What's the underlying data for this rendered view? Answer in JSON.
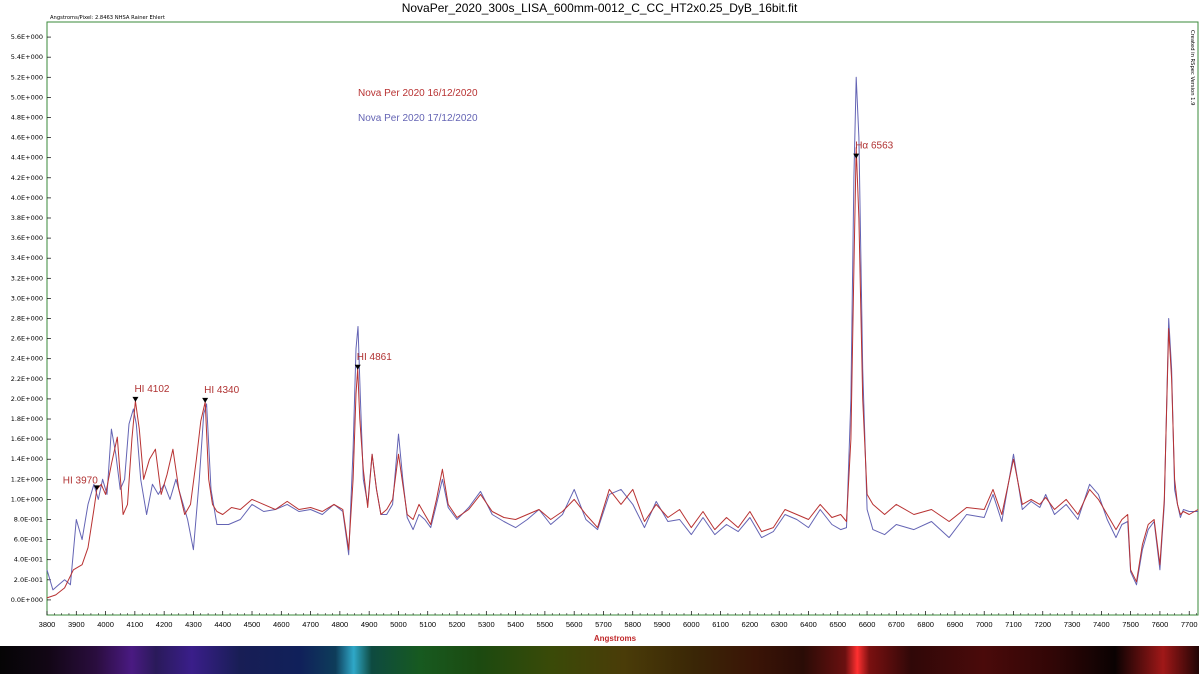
{
  "chart_data": {
    "type": "line",
    "title": "NovaPer_2020_300s_LISA_600mm-0012_C_CC_HT2x0.25_DyB_16bit.fit",
    "subtitle": "Angstroms/Pixel: 2.8463 NHSA Rainer Ehlert",
    "right_note": "Created in RSpec Version 1.9",
    "xlabel": "Angstroms",
    "ylabel": "",
    "xlim": [
      3800,
      7730
    ],
    "ylim": [
      -0.15,
      5.75
    ],
    "grid": false,
    "legend_placement": "top-left",
    "x_ticks": [
      3800,
      3900,
      4000,
      4100,
      4200,
      4300,
      4400,
      4500,
      4600,
      4700,
      4800,
      4900,
      5000,
      5100,
      5200,
      5300,
      5400,
      5500,
      5600,
      5700,
      5800,
      5900,
      6000,
      6100,
      6200,
      6300,
      6400,
      6500,
      6600,
      6700,
      6800,
      6900,
      7000,
      7100,
      7200,
      7300,
      7400,
      7500,
      7600,
      7700
    ],
    "y_ticks": [
      0.0,
      0.2,
      0.4,
      0.6,
      0.8,
      1.0,
      1.2,
      1.4,
      1.6,
      1.8,
      2.0,
      2.2,
      2.4,
      2.6,
      2.8,
      3.0,
      3.2,
      3.4,
      3.6,
      3.8,
      4.0,
      4.2,
      4.4,
      4.6,
      4.8,
      5.0,
      5.2,
      5.4,
      5.6
    ],
    "y_tick_labels": [
      "0.0E+000",
      "2.0E-001",
      "4.0E-001",
      "6.0E-001",
      "8.0E-001",
      "1.0E+000",
      "1.2E+000",
      "1.4E+000",
      "1.6E+000",
      "1.8E+000",
      "2.0E+000",
      "2.2E+000",
      "2.4E+000",
      "2.6E+000",
      "2.8E+000",
      "3.0E+000",
      "3.2E+000",
      "3.4E+000",
      "3.6E+000",
      "3.8E+000",
      "4.0E+000",
      "4.2E+000",
      "4.4E+000",
      "4.6E+000",
      "4.8E+000",
      "5.0E+000",
      "5.2E+000",
      "5.4E+000",
      "5.6E+000"
    ],
    "series": [
      {
        "name": "Nova Per 2020 16/12/2020",
        "color": "#b83232",
        "x": [
          3800,
          3830,
          3860,
          3890,
          3920,
          3940,
          3960,
          3970,
          3985,
          4000,
          4020,
          4040,
          4060,
          4075,
          4090,
          4102,
          4115,
          4130,
          4150,
          4170,
          4190,
          4210,
          4230,
          4250,
          4270,
          4290,
          4310,
          4325,
          4340,
          4352,
          4365,
          4380,
          4400,
          4430,
          4460,
          4500,
          4540,
          4580,
          4620,
          4660,
          4700,
          4740,
          4780,
          4810,
          4830,
          4845,
          4855,
          4861,
          4868,
          4880,
          4895,
          4910,
          4925,
          4940,
          4960,
          4980,
          5000,
          5015,
          5030,
          5050,
          5070,
          5090,
          5110,
          5130,
          5150,
          5170,
          5200,
          5240,
          5280,
          5320,
          5360,
          5400,
          5440,
          5480,
          5520,
          5560,
          5600,
          5640,
          5680,
          5720,
          5760,
          5800,
          5840,
          5880,
          5920,
          5960,
          6000,
          6040,
          6080,
          6120,
          6160,
          6200,
          6240,
          6280,
          6320,
          6360,
          6400,
          6440,
          6480,
          6510,
          6530,
          6545,
          6555,
          6563,
          6572,
          6585,
          6600,
          6620,
          6660,
          6700,
          6760,
          6820,
          6880,
          6940,
          7000,
          7030,
          7060,
          7100,
          7130,
          7160,
          7190,
          7210,
          7240,
          7280,
          7320,
          7360,
          7390,
          7420,
          7450,
          7470,
          7490,
          7500,
          7520,
          7540,
          7560,
          7580,
          7600,
          7615,
          7630,
          7640,
          7650,
          7660,
          7670,
          7680,
          7700,
          7730
        ],
        "y": [
          0.02,
          0.05,
          0.12,
          0.3,
          0.35,
          0.52,
          0.9,
          1.1,
          1.15,
          1.05,
          1.35,
          1.62,
          0.85,
          0.95,
          1.6,
          1.98,
          1.7,
          1.2,
          1.4,
          1.5,
          1.05,
          1.25,
          1.5,
          1.1,
          0.85,
          0.95,
          1.4,
          1.78,
          1.97,
          1.2,
          0.95,
          0.88,
          0.85,
          0.92,
          0.9,
          1.0,
          0.95,
          0.9,
          0.98,
          0.9,
          0.92,
          0.88,
          0.95,
          0.9,
          0.5,
          1.2,
          2.05,
          2.3,
          1.8,
          1.3,
          0.92,
          1.45,
          1.1,
          0.85,
          0.9,
          1.0,
          1.45,
          1.15,
          0.85,
          0.8,
          0.95,
          0.85,
          0.75,
          1.0,
          1.3,
          0.95,
          0.82,
          0.9,
          1.05,
          0.88,
          0.82,
          0.8,
          0.85,
          0.9,
          0.8,
          0.88,
          1.0,
          0.85,
          0.72,
          1.1,
          0.95,
          1.1,
          0.78,
          0.95,
          0.82,
          0.9,
          0.72,
          0.88,
          0.7,
          0.82,
          0.72,
          0.88,
          0.68,
          0.72,
          0.9,
          0.85,
          0.8,
          0.95,
          0.82,
          0.85,
          0.78,
          1.6,
          3.3,
          4.5,
          3.8,
          2.0,
          1.05,
          0.95,
          0.85,
          0.95,
          0.85,
          0.9,
          0.78,
          0.92,
          0.9,
          1.1,
          0.85,
          1.4,
          0.95,
          1.0,
          0.95,
          1.02,
          0.9,
          1.0,
          0.85,
          1.1,
          1.0,
          0.85,
          0.7,
          0.8,
          0.85,
          0.3,
          0.18,
          0.55,
          0.75,
          0.8,
          0.35,
          1.0,
          2.7,
          2.2,
          1.2,
          0.95,
          0.85,
          0.88,
          0.85,
          0.9
        ]
      },
      {
        "name": "Nova Per 2020 17/12/2020",
        "color": "#6464b4",
        "x": [
          3800,
          3820,
          3840,
          3860,
          3880,
          3900,
          3920,
          3940,
          3960,
          3975,
          3990,
          4005,
          4020,
          4035,
          4050,
          4065,
          4080,
          4095,
          4105,
          4120,
          4140,
          4160,
          4180,
          4200,
          4220,
          4240,
          4260,
          4280,
          4300,
          4320,
          4335,
          4345,
          4360,
          4380,
          4420,
          4460,
          4500,
          4540,
          4580,
          4620,
          4660,
          4700,
          4740,
          4780,
          4810,
          4830,
          4845,
          4855,
          4862,
          4870,
          4880,
          4895,
          4910,
          4925,
          4940,
          4960,
          4980,
          5000,
          5015,
          5030,
          5050,
          5070,
          5090,
          5110,
          5130,
          5150,
          5170,
          5200,
          5240,
          5280,
          5320,
          5360,
          5400,
          5440,
          5480,
          5520,
          5560,
          5600,
          5640,
          5680,
          5720,
          5760,
          5800,
          5840,
          5880,
          5920,
          5960,
          6000,
          6040,
          6080,
          6120,
          6160,
          6200,
          6240,
          6280,
          6320,
          6360,
          6400,
          6440,
          6480,
          6510,
          6530,
          6545,
          6555,
          6563,
          6572,
          6585,
          6600,
          6620,
          6660,
          6700,
          6760,
          6820,
          6880,
          6940,
          7000,
          7030,
          7060,
          7100,
          7130,
          7160,
          7190,
          7210,
          7240,
          7280,
          7320,
          7360,
          7390,
          7420,
          7450,
          7470,
          7490,
          7500,
          7520,
          7540,
          7560,
          7580,
          7600,
          7615,
          7630,
          7640,
          7650,
          7660,
          7670,
          7680,
          7700,
          7730
        ],
        "y": [
          0.3,
          0.1,
          0.15,
          0.2,
          0.15,
          0.8,
          0.6,
          0.95,
          1.15,
          1.0,
          1.2,
          1.05,
          1.7,
          1.45,
          1.1,
          1.2,
          1.75,
          1.9,
          1.75,
          1.2,
          0.85,
          1.15,
          1.05,
          1.15,
          1.0,
          1.2,
          1.0,
          0.8,
          0.5,
          1.2,
          1.85,
          1.95,
          1.1,
          0.75,
          0.75,
          0.8,
          0.95,
          0.88,
          0.9,
          0.95,
          0.88,
          0.9,
          0.85,
          0.95,
          0.88,
          0.45,
          1.5,
          2.5,
          2.72,
          2.0,
          1.2,
          0.95,
          1.45,
          1.1,
          0.85,
          0.85,
          0.95,
          1.65,
          1.2,
          0.82,
          0.7,
          0.85,
          0.8,
          0.72,
          0.95,
          1.2,
          0.92,
          0.8,
          0.92,
          1.08,
          0.85,
          0.78,
          0.72,
          0.8,
          0.9,
          0.75,
          0.85,
          1.1,
          0.8,
          0.7,
          1.05,
          1.1,
          0.95,
          0.72,
          0.98,
          0.78,
          0.8,
          0.65,
          0.82,
          0.65,
          0.75,
          0.68,
          0.82,
          0.62,
          0.68,
          0.85,
          0.8,
          0.72,
          0.9,
          0.75,
          0.7,
          0.72,
          2.0,
          4.2,
          5.2,
          4.6,
          2.3,
          0.9,
          0.7,
          0.65,
          0.75,
          0.7,
          0.78,
          0.62,
          0.85,
          0.82,
          1.05,
          0.78,
          1.45,
          0.9,
          0.98,
          0.92,
          1.05,
          0.85,
          0.95,
          0.8,
          1.15,
          1.05,
          0.8,
          0.62,
          0.75,
          0.78,
          0.28,
          0.15,
          0.5,
          0.7,
          0.78,
          0.3,
          0.95,
          2.8,
          2.3,
          1.1,
          0.95,
          0.82,
          0.9,
          0.88,
          0.88
        ]
      }
    ],
    "annotations": [
      {
        "label": "HI 3970",
        "x": 3970,
        "y": 1.1
      },
      {
        "label": "HI 4102",
        "x": 4102,
        "y": 1.98
      },
      {
        "label": "HI 4340",
        "x": 4340,
        "y": 1.97
      },
      {
        "label": "HI 4861",
        "x": 4861,
        "y": 2.3
      },
      {
        "label": "Hα 6563",
        "x": 6563,
        "y": 4.4
      }
    ]
  },
  "colors": {
    "frame": "#3a8a3a",
    "annotation": "#b03232",
    "marker": "#000000",
    "axis_title": "#c0282a"
  }
}
